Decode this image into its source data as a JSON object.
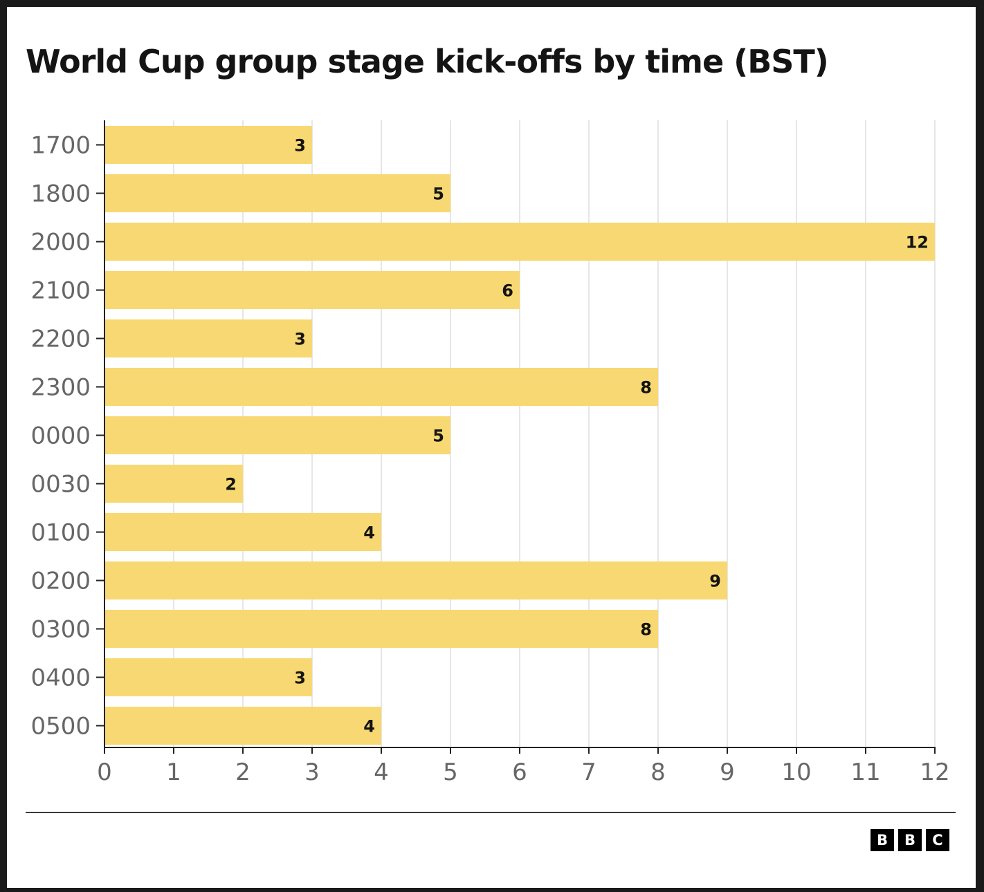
{
  "chart_data": {
    "type": "bar",
    "orientation": "horizontal",
    "title": "World Cup group stage kick-offs by time (BST)",
    "xlabel": "",
    "ylabel": "",
    "categories": [
      "1700",
      "1800",
      "2000",
      "2100",
      "2200",
      "2300",
      "0000",
      "0030",
      "0100",
      "0200",
      "0300",
      "0400",
      "0500"
    ],
    "values": [
      3,
      5,
      12,
      6,
      3,
      8,
      5,
      2,
      4,
      9,
      8,
      3,
      4
    ],
    "xlim": [
      0,
      12
    ],
    "x_ticks": [
      0,
      1,
      2,
      3,
      4,
      5,
      6,
      7,
      8,
      9,
      10,
      11,
      12
    ],
    "grid": "vertical",
    "data_labels": true,
    "bar_color": "#f8d872",
    "gridline_color": "#e6e6e6",
    "axis_color": "#222222"
  },
  "branding": {
    "logo_letters": [
      "B",
      "B",
      "C"
    ]
  }
}
